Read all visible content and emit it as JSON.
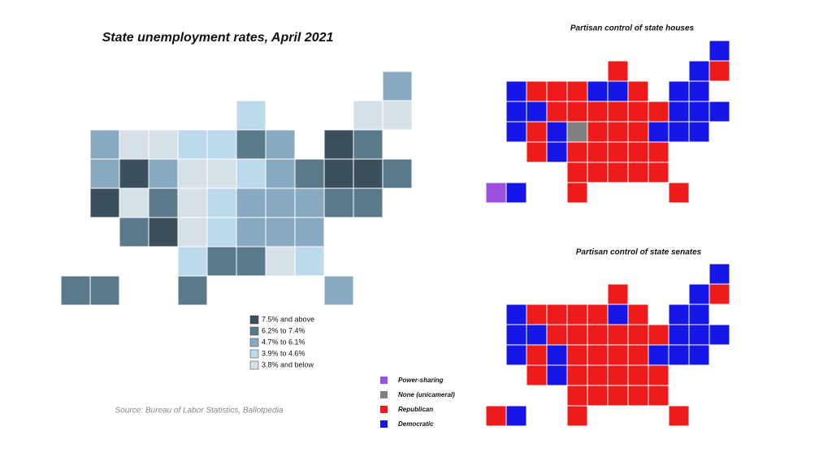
{
  "unemployment_map": {
    "title": "State unemployment rates, April 2021",
    "legend": [
      {
        "label": "7.5% and above",
        "color": "#3b4f5c"
      },
      {
        "label": "6.2% to 7.4%",
        "color": "#5b7b8d"
      },
      {
        "label": "4.7% to 6.1%",
        "color": "#88aac1"
      },
      {
        "label": "3.9% to 4.6%",
        "color": "#bcdaec"
      },
      {
        "label": "3.8% and below",
        "color": "#d6e0e7"
      }
    ],
    "source": "Source: Bureau of Labor Statistics, Ballotpedia"
  },
  "houses_map": {
    "title": "Partisan control of state houses"
  },
  "senates_map": {
    "title": "Partisan control of state senates"
  },
  "party_legend": [
    {
      "label": "Power-sharing",
      "color": "#9b50e0"
    },
    {
      "label": "None (unicameral)",
      "color": "#808080"
    },
    {
      "label": "Republican",
      "color": "#ee1b1b"
    },
    {
      "label": "Democratic",
      "color": "#1616e6"
    }
  ]
}
